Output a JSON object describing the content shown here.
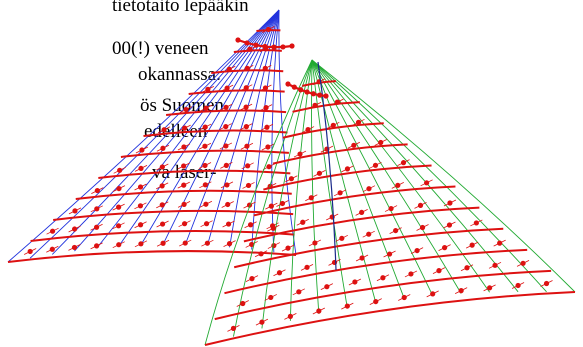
{
  "text_lines": [
    "tietotaito lepääkin",
    "00(!) veneen",
    "okannassa.",
    "ös Suomen",
    "edelleen",
    "va laser-"
  ],
  "colors": {
    "left_sail_lines": "#2233dd",
    "right_sail_lines": "#22aa33",
    "batten_red": "#dd1111",
    "center_line": "#1a2a8a"
  }
}
